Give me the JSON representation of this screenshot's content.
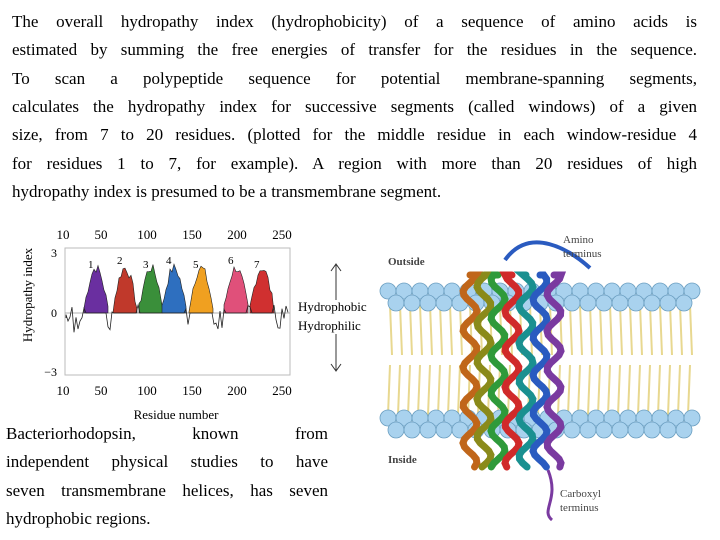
{
  "paragraph": {
    "lines": [
      "The overall hydropathy index (hydrophobicity) of a sequence of amino acids is",
      "estimated by summing the free energies of transfer for the residues in the sequence.",
      "To scan a polypeptide sequence for potential membrane-spanning segments,",
      "calculates the hydropathy index for successive segments (called windows) of a given",
      "size, from 7 to 20 residues. (plotted  for the middle residue in each window-residue 4",
      "for residues 1 to 7, for example).  A region with more than 20 residues of  high",
      "hydropathy index is presumed to be a transmembrane segment."
    ]
  },
  "plot": {
    "y_axis_label": "Hydropathy index",
    "x_axis_label": "Residue number",
    "top_ticks": [
      "10",
      "50",
      "100",
      "150",
      "200",
      "250"
    ],
    "bottom_ticks": [
      "10",
      "50",
      "100",
      "150",
      "200",
      "250"
    ],
    "y_ticks": [
      "3",
      "0",
      "−3"
    ],
    "peak_labels": [
      "1",
      "2",
      "3",
      "4",
      "5",
      "6",
      "7"
    ],
    "hydrophobic": "Hydrophobic",
    "hydrophilic": "Hydrophilic"
  },
  "caption": {
    "lines": [
      "Bacteriorhodopsin, known from",
      "independent physical studies to have",
      "seven transmembrane helices, has seven",
      "hydrophobic regions."
    ]
  },
  "illustration": {
    "outside": "Outside",
    "inside": "Inside",
    "amino_terminus": [
      "Amino",
      "terminus"
    ],
    "carboxyl_terminus": [
      "Carboxyl",
      "terminus"
    ]
  }
}
